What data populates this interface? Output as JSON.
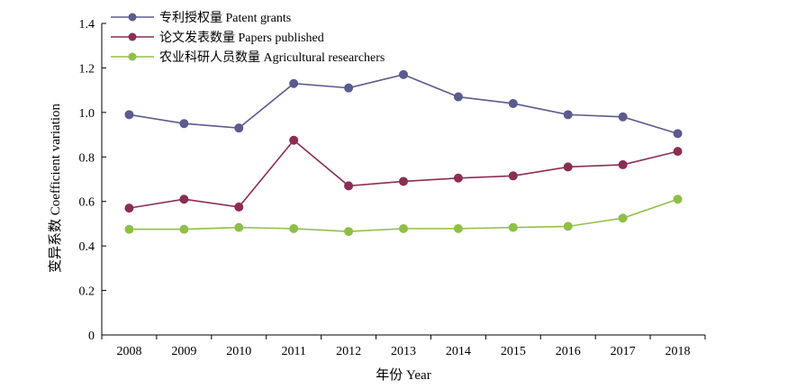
{
  "chart_data": {
    "type": "line",
    "categories": [
      "2008",
      "2009",
      "2010",
      "2011",
      "2012",
      "2013",
      "2014",
      "2015",
      "2016",
      "2017",
      "2018"
    ],
    "series": [
      {
        "name": "专利授权量 Patent grants",
        "color": "#5b5b8f",
        "values": [
          0.99,
          0.95,
          0.93,
          1.13,
          1.11,
          1.17,
          1.07,
          1.04,
          0.99,
          0.98,
          0.905
        ]
      },
      {
        "name": "论文发表数量 Papers published",
        "color": "#8b2d55",
        "values": [
          0.57,
          0.61,
          0.575,
          0.875,
          0.67,
          0.69,
          0.705,
          0.715,
          0.755,
          0.765,
          0.825
        ]
      },
      {
        "name": "农业科研人员数量  Agricultural  researchers",
        "color": "#8fbf46",
        "values": [
          0.475,
          0.475,
          0.483,
          0.478,
          0.465,
          0.478,
          0.478,
          0.483,
          0.488,
          0.525,
          0.61
        ]
      }
    ],
    "xlabel": "年份 Year",
    "ylabel": "变异系数 Coefficient variation",
    "ylim": [
      0,
      1.4
    ],
    "yticks": [
      "0",
      "0.2",
      "0.4",
      "0.6",
      "0.8",
      "1.0",
      "1.2",
      "1.4"
    ],
    "grid": false,
    "legend_position": "top-left"
  }
}
